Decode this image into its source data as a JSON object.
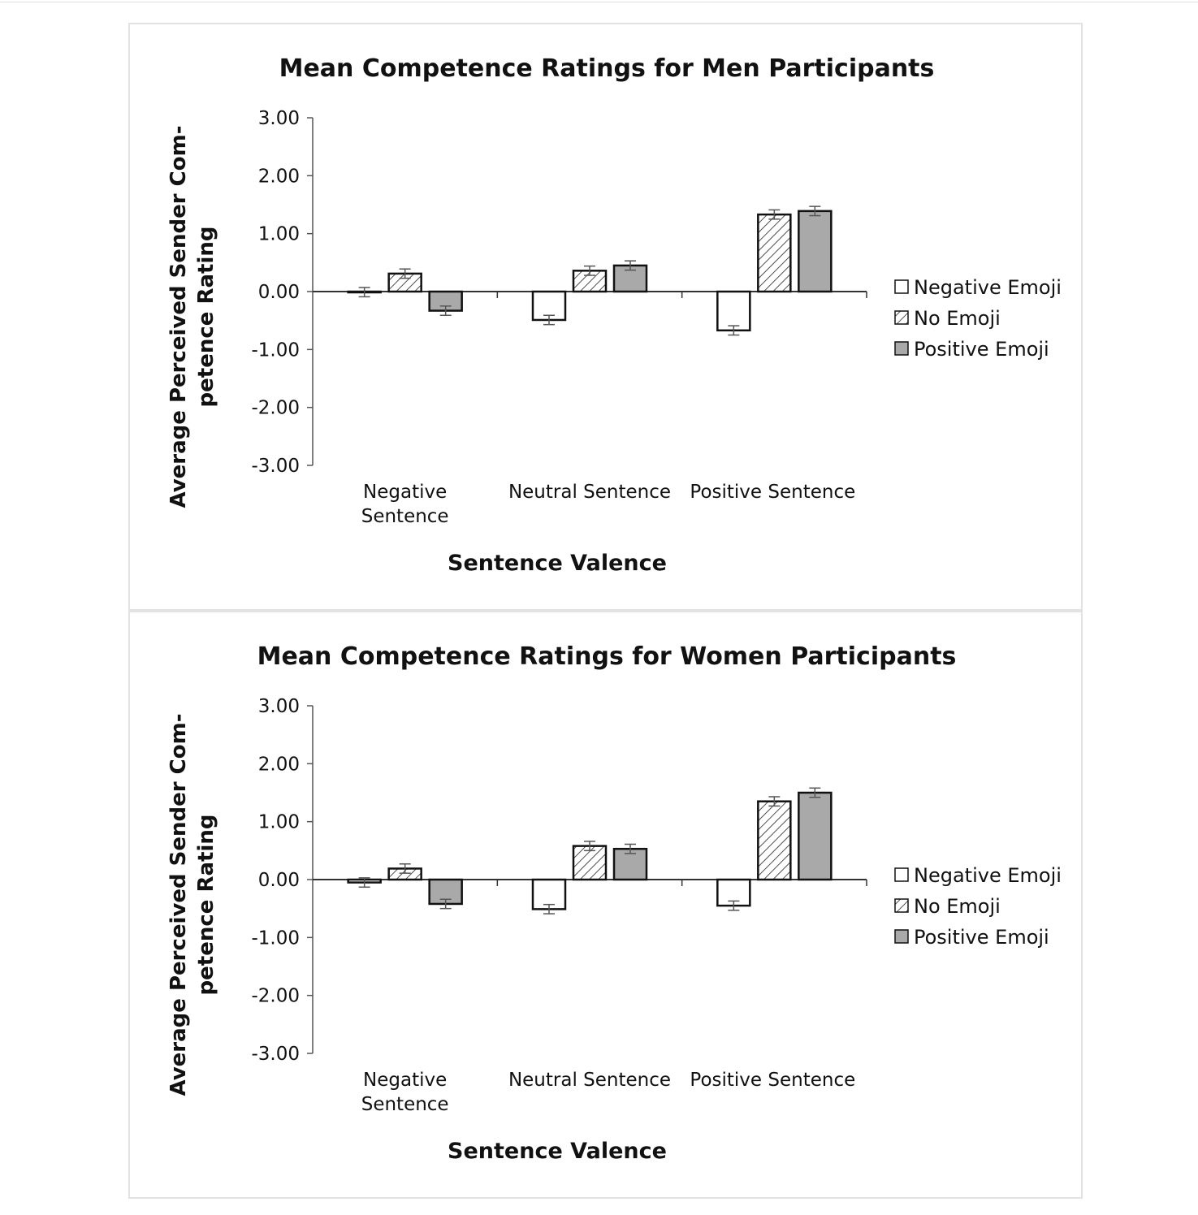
{
  "chart_data": [
    {
      "type": "bar",
      "title": "Mean Competence Ratings for Men Participants",
      "xlabel": "Sentence Valence",
      "ylabel": "Average Perceived Sender Com-petence Rating",
      "ylabel_lines": [
        "Average Perceived Sender Com-",
        "petence Rating"
      ],
      "categories": [
        [
          "Negative",
          "Sentence"
        ],
        [
          "Neutral Sentence"
        ],
        [
          "Positive Sentence"
        ]
      ],
      "yticks": [
        "3.00",
        "2.00",
        "1.00",
        "0.00",
        "-1.00",
        "-2.00",
        "-3.00"
      ],
      "ylim": [
        -3,
        3
      ],
      "legend_position": "right",
      "series": [
        {
          "name": "Negative Emoji",
          "fill": "white",
          "values": [
            -0.01,
            -0.49,
            -0.67
          ],
          "errors": [
            0.08,
            0.08,
            0.08
          ]
        },
        {
          "name": "No Emoji",
          "fill": "hatched",
          "values": [
            0.31,
            0.36,
            1.33
          ],
          "errors": [
            0.08,
            0.08,
            0.08
          ]
        },
        {
          "name": "Positive Emoji",
          "fill": "#a9a9a9",
          "values": [
            -0.33,
            0.45,
            1.39
          ],
          "errors": [
            0.08,
            0.08,
            0.08
          ]
        }
      ]
    },
    {
      "type": "bar",
      "title": "Mean Competence Ratings for Women Participants",
      "xlabel": "Sentence Valence",
      "ylabel": "Average Perceived Sender Com-petence Rating",
      "ylabel_lines": [
        "Average Perceived Sender Com-",
        "petence Rating"
      ],
      "categories": [
        [
          "Negative",
          "Sentence"
        ],
        [
          "Neutral Sentence"
        ],
        [
          "Positive Sentence"
        ]
      ],
      "yticks": [
        "3.00",
        "2.00",
        "1.00",
        "0.00",
        "-1.00",
        "-2.00",
        "-3.00"
      ],
      "ylim": [
        -3,
        3
      ],
      "legend_position": "right",
      "series": [
        {
          "name": "Negative Emoji",
          "fill": "white",
          "values": [
            -0.05,
            -0.51,
            -0.45
          ],
          "errors": [
            0.08,
            0.08,
            0.08
          ]
        },
        {
          "name": "No Emoji",
          "fill": "hatched",
          "values": [
            0.19,
            0.58,
            1.35
          ],
          "errors": [
            0.08,
            0.08,
            0.08
          ]
        },
        {
          "name": "Positive Emoji",
          "fill": "#a9a9a9",
          "values": [
            -0.42,
            0.53,
            1.5
          ],
          "errors": [
            0.08,
            0.08,
            0.08
          ]
        }
      ]
    }
  ]
}
